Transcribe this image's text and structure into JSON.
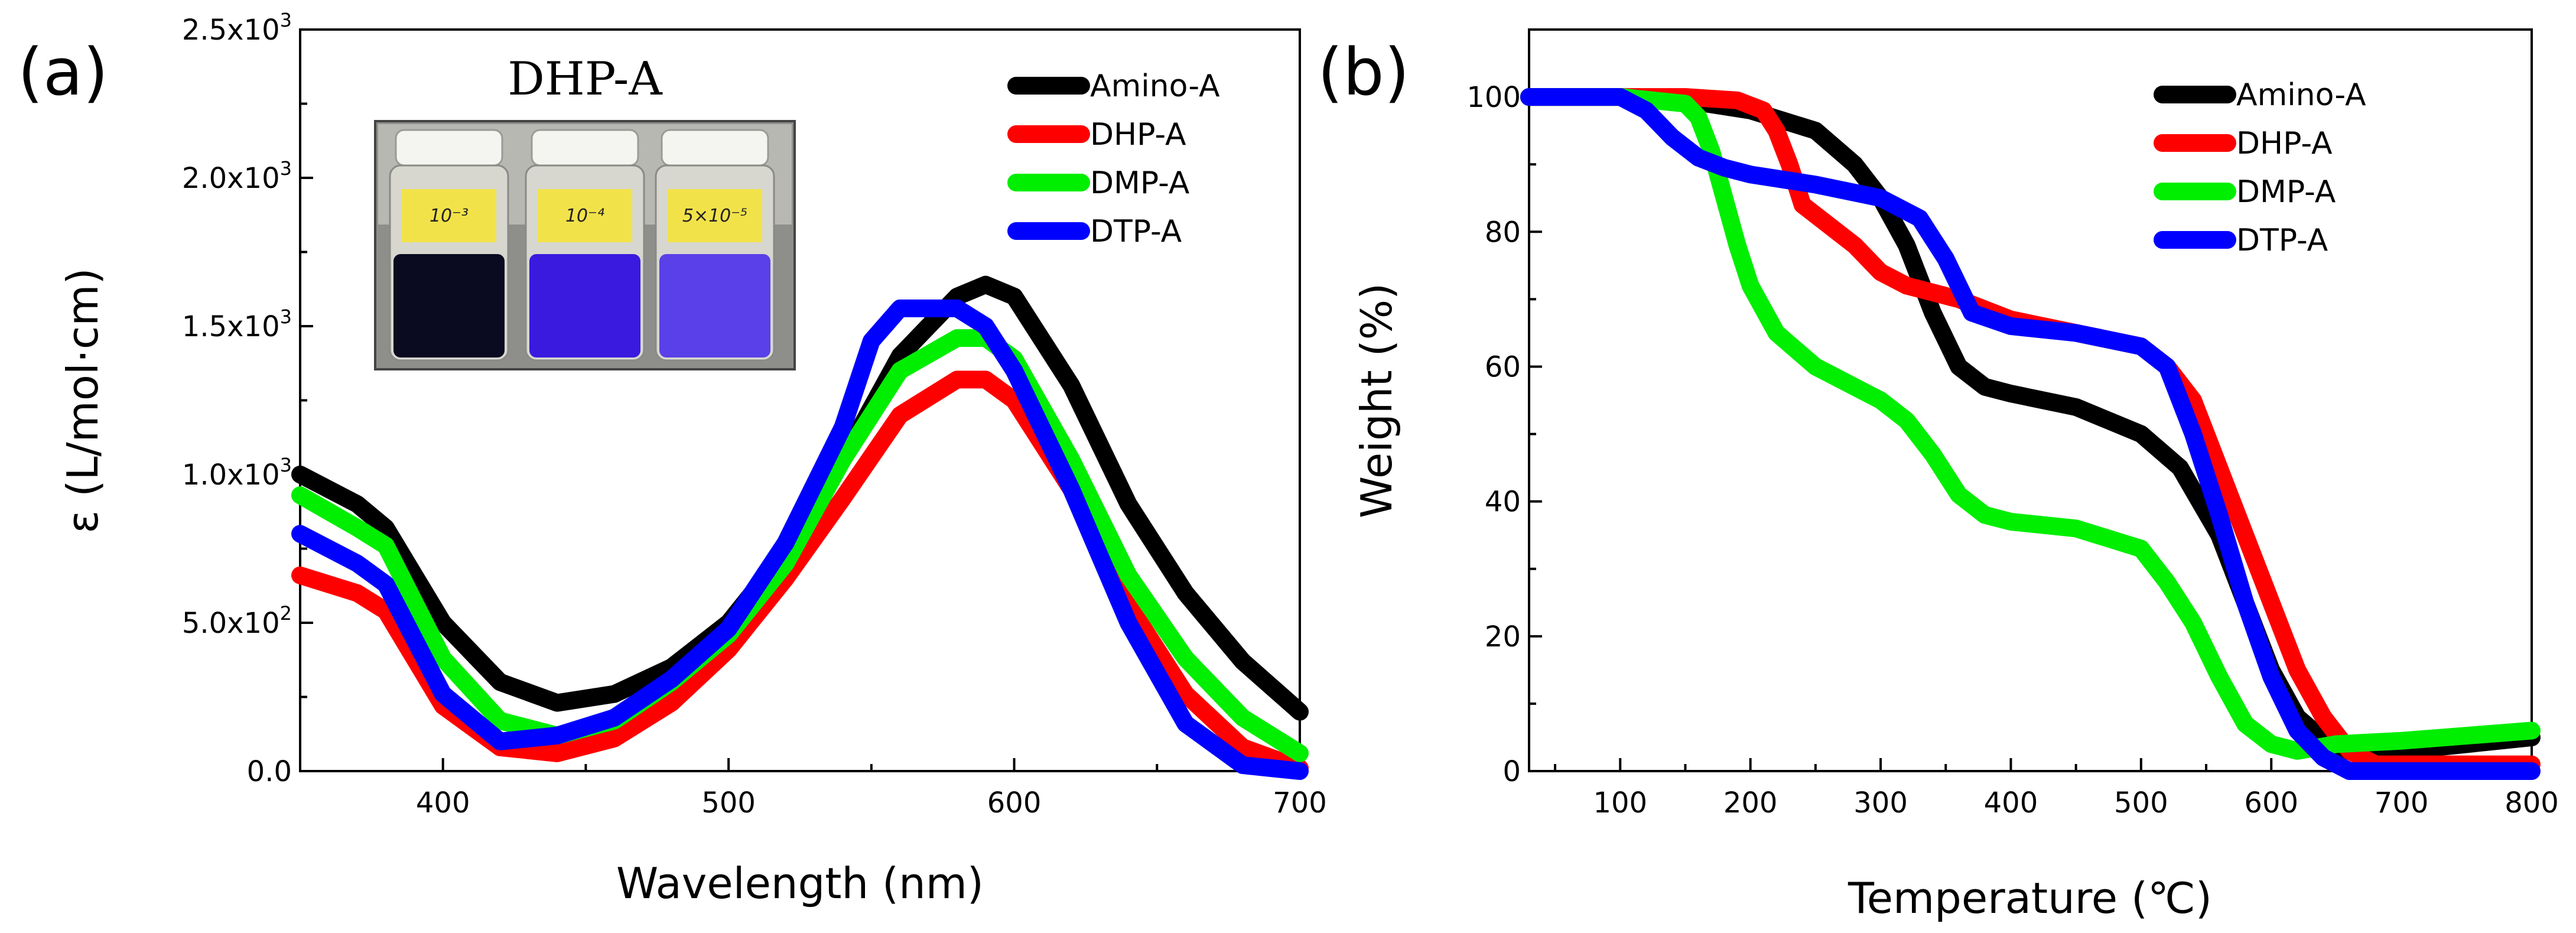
{
  "figure": {
    "panel_a_label": "(a)",
    "panel_b_label": "(b)"
  },
  "colors": {
    "Amino-A": "#000000",
    "DHP-A": "#ff0000",
    "DMP-A": "#00ee00",
    "DTP-A": "#0000ff"
  },
  "inset": {
    "title": "DHP-A",
    "vials": [
      {
        "label": "10⁻³",
        "liquid": "#0a0a20"
      },
      {
        "label": "10⁻⁴",
        "liquid": "#3a1adf"
      },
      {
        "label": "5×10⁻⁵",
        "liquid": "#5a40e8"
      }
    ]
  },
  "chart_data": [
    {
      "type": "line",
      "title": "",
      "xlabel": "Wavelength (nm)",
      "ylabel": "ε (L/mol·cm)",
      "xlim": [
        350,
        700
      ],
      "ylim": [
        0,
        2500
      ],
      "xticks": [
        400,
        500,
        600,
        700
      ],
      "yticks": [
        {
          "value": 0,
          "mantissa": "0.0",
          "exp": "0"
        },
        {
          "value": 500,
          "mantissa": "5.0",
          "exp": "2"
        },
        {
          "value": 1000,
          "mantissa": "1.0",
          "exp": "3"
        },
        {
          "value": 1500,
          "mantissa": "1.5",
          "exp": "3"
        },
        {
          "value": 2000,
          "mantissa": "2.0",
          "exp": "3"
        },
        {
          "value": 2500,
          "mantissa": "2.5",
          "exp": "3"
        }
      ],
      "legend_position": "top-right",
      "series": [
        {
          "name": "Amino-A",
          "x": [
            350,
            370,
            380,
            400,
            420,
            440,
            460,
            480,
            500,
            520,
            540,
            560,
            580,
            590,
            600,
            620,
            640,
            660,
            680,
            700
          ],
          "y": [
            1000,
            900,
            820,
            500,
            300,
            230,
            260,
            350,
            500,
            740,
            1050,
            1400,
            1600,
            1640,
            1600,
            1300,
            900,
            600,
            370,
            200
          ]
        },
        {
          "name": "DHP-A",
          "x": [
            350,
            370,
            380,
            400,
            420,
            440,
            460,
            480,
            500,
            520,
            540,
            560,
            580,
            590,
            600,
            620,
            640,
            660,
            680,
            700
          ],
          "y": [
            660,
            600,
            540,
            220,
            80,
            60,
            110,
            230,
            410,
            650,
            920,
            1200,
            1320,
            1320,
            1250,
            950,
            560,
            260,
            80,
            10
          ]
        },
        {
          "name": "DMP-A",
          "x": [
            350,
            370,
            380,
            400,
            420,
            440,
            460,
            480,
            500,
            520,
            540,
            560,
            580,
            590,
            600,
            620,
            640,
            660,
            680,
            700
          ],
          "y": [
            930,
            820,
            760,
            380,
            170,
            120,
            170,
            300,
            460,
            700,
            1050,
            1350,
            1460,
            1460,
            1390,
            1050,
            660,
            380,
            180,
            60
          ]
        },
        {
          "name": "DTP-A",
          "x": [
            350,
            370,
            380,
            400,
            420,
            440,
            460,
            480,
            500,
            520,
            540,
            550,
            560,
            580,
            590,
            600,
            620,
            640,
            660,
            680,
            700
          ],
          "y": [
            800,
            700,
            630,
            260,
            100,
            120,
            180,
            310,
            480,
            770,
            1160,
            1450,
            1560,
            1560,
            1500,
            1350,
            950,
            500,
            160,
            20,
            0
          ]
        }
      ]
    },
    {
      "type": "line",
      "title": "",
      "xlabel": "Temperature (℃)",
      "ylabel": "Weight (%)",
      "xlim": [
        30,
        800
      ],
      "ylim": [
        0,
        110
      ],
      "xticks": [
        100,
        200,
        300,
        400,
        500,
        600,
        700,
        800
      ],
      "yticks": [
        0,
        20,
        40,
        60,
        80,
        100
      ],
      "legend_position": "top-right",
      "series": [
        {
          "name": "Amino-A",
          "x": [
            30,
            100,
            150,
            200,
            250,
            280,
            300,
            320,
            340,
            360,
            380,
            400,
            450,
            500,
            530,
            560,
            580,
            600,
            620,
            650,
            680,
            700,
            750,
            800
          ],
          "y": [
            100,
            100,
            99.5,
            98,
            95,
            90,
            85,
            78,
            68,
            60,
            57,
            56,
            54,
            50,
            45,
            35,
            25,
            15,
            8,
            3,
            3,
            3,
            4,
            5
          ]
        },
        {
          "name": "DHP-A",
          "x": [
            30,
            100,
            150,
            190,
            210,
            220,
            230,
            240,
            260,
            280,
            300,
            320,
            360,
            400,
            450,
            500,
            520,
            540,
            560,
            580,
            600,
            620,
            640,
            660,
            680,
            700,
            800
          ],
          "y": [
            100,
            100,
            100,
            99.5,
            98,
            95,
            90,
            84,
            81,
            78,
            74,
            72,
            70,
            67,
            65,
            63,
            60,
            55,
            45,
            35,
            25,
            15,
            8,
            3,
            1,
            1,
            1
          ]
        },
        {
          "name": "DMP-A",
          "x": [
            30,
            100,
            150,
            160,
            170,
            180,
            190,
            200,
            220,
            250,
            300,
            320,
            340,
            360,
            380,
            400,
            450,
            500,
            520,
            540,
            560,
            580,
            600,
            620,
            650,
            700,
            800
          ],
          "y": [
            100,
            100,
            99,
            97,
            92,
            85,
            78,
            72,
            65,
            60,
            55,
            52,
            47,
            41,
            38,
            37,
            36,
            33,
            28,
            22,
            14,
            7,
            4,
            3,
            4,
            4.5,
            6
          ]
        },
        {
          "name": "DTP-A",
          "x": [
            30,
            100,
            120,
            140,
            160,
            180,
            200,
            250,
            300,
            330,
            350,
            370,
            400,
            450,
            500,
            520,
            540,
            560,
            580,
            600,
            620,
            640,
            660,
            680,
            700,
            800
          ],
          "y": [
            100,
            100,
            98,
            94,
            91,
            89.5,
            88.5,
            87,
            85,
            82,
            76,
            68,
            66,
            65,
            63,
            60,
            50,
            38,
            25,
            14,
            6,
            2,
            0,
            0,
            0,
            0
          ]
        }
      ]
    }
  ]
}
